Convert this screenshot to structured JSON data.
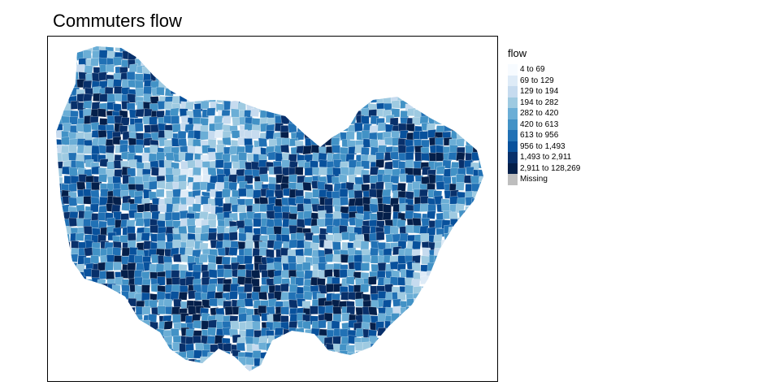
{
  "title": "Commuters flow",
  "legend": {
    "title": "flow",
    "classes": [
      {
        "label": "4 to 69",
        "color": "#f7fbff"
      },
      {
        "label": "69 to 129",
        "color": "#deebf7"
      },
      {
        "label": "129 to 194",
        "color": "#c6dbef"
      },
      {
        "label": "194 to 282",
        "color": "#9ecae1"
      },
      {
        "label": "282 to 420",
        "color": "#6baed6"
      },
      {
        "label": "420 to 613",
        "color": "#4292c6"
      },
      {
        "label": "613 to 956",
        "color": "#2171b5"
      },
      {
        "label": "956 to 1,493",
        "color": "#08519c"
      },
      {
        "label": "1,493 to 2,911",
        "color": "#08306b"
      },
      {
        "label": "2,911 to 128,269",
        "color": "#041f4a"
      },
      {
        "label": "Missing",
        "color": "#bebebe"
      }
    ]
  }
}
